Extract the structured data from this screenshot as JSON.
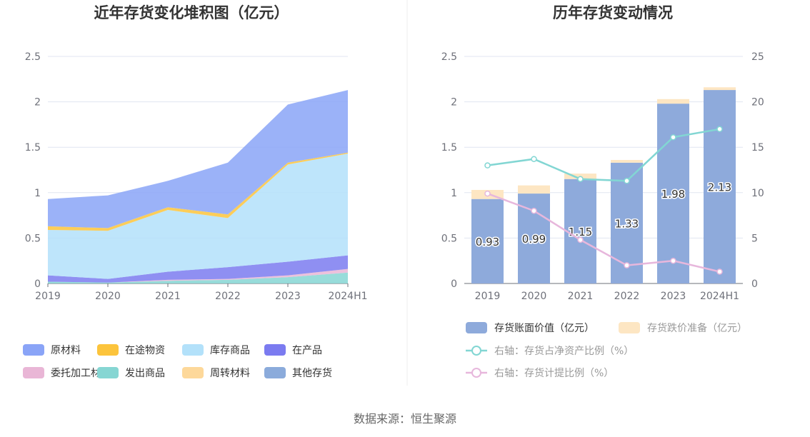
{
  "left_chart": {
    "title": "近年存货变化堆积图（亿元）"
  },
  "right_chart": {
    "title": "历年存货变动情况"
  },
  "source": "数据来源：恒生聚源",
  "colors": {
    "原材料": "#8aa4f7",
    "在途物资": "#fcc43c",
    "库存商品": "#b3e1fa",
    "在产品": "#7b7bf0",
    "委托加工材料": "#e9b6d6",
    "发出商品": "#86d6d3",
    "周转材料": "#fdd89a",
    "其他存货": "#8babdb",
    "book_value": "#8eaadb",
    "impairment": "#fde6c3",
    "ratio_net_assets": "#82d6d3",
    "provision_ratio": "#e7b7dc"
  },
  "chart_data": [
    {
      "type": "area",
      "stacked": true,
      "title": "近年存货变化堆积图（亿元）",
      "categories": [
        "2019",
        "2020",
        "2021",
        "2022",
        "2023",
        "2024H1"
      ],
      "ylim": [
        0,
        2.5
      ],
      "yticks": [
        "0",
        "0.5",
        "1",
        "1.5",
        "2",
        "2.5"
      ],
      "grid": true,
      "legend_position": "bottom",
      "series": [
        {
          "name": "发出商品",
          "values": [
            0.02,
            0.01,
            0.03,
            0.04,
            0.07,
            0.12
          ]
        },
        {
          "name": "委托加工材料",
          "values": [
            0.0,
            0.0,
            0.01,
            0.01,
            0.02,
            0.04
          ]
        },
        {
          "name": "在产品",
          "values": [
            0.07,
            0.04,
            0.09,
            0.13,
            0.15,
            0.15
          ]
        },
        {
          "name": "库存商品",
          "values": [
            0.5,
            0.53,
            0.68,
            0.54,
            1.07,
            1.12
          ]
        },
        {
          "name": "周转材料",
          "values": [
            0.0,
            0.0,
            0.0,
            0.0,
            0.0,
            0.0
          ]
        },
        {
          "name": "在途物资",
          "values": [
            0.04,
            0.03,
            0.03,
            0.04,
            0.02,
            0.01
          ]
        },
        {
          "name": "其他存货",
          "values": [
            0.0,
            0.0,
            0.0,
            0.0,
            0.0,
            0.0
          ]
        },
        {
          "name": "原材料",
          "values": [
            0.3,
            0.36,
            0.29,
            0.57,
            0.64,
            0.69
          ]
        }
      ],
      "legend": [
        "原材料",
        "在途物资",
        "库存商品",
        "在产品",
        "委托加工材料",
        "发出商品",
        "周转材料",
        "其他存货"
      ]
    },
    {
      "type": "bar",
      "stacked": true,
      "title": "历年存货变动情况",
      "categories": [
        "2019",
        "2020",
        "2021",
        "2022",
        "2023",
        "2024H1"
      ],
      "ylim": [
        0,
        2.5
      ],
      "yticks": [
        "0",
        "0.5",
        "1",
        "1.5",
        "2",
        "2.5"
      ],
      "y2lim": [
        0,
        25
      ],
      "y2ticks": [
        "0",
        "5",
        "10",
        "15",
        "20",
        "25"
      ],
      "grid": true,
      "legend_position": "bottom",
      "series": [
        {
          "name": "存货账面价值（亿元）",
          "kind": "bar",
          "values": [
            0.93,
            0.99,
            1.15,
            1.33,
            1.98,
            2.13
          ],
          "labels": [
            "0.93",
            "0.99",
            "1.15",
            "1.33",
            "1.98",
            "2.13"
          ]
        },
        {
          "name": "存货跌价准备（亿元）",
          "kind": "bar",
          "values": [
            0.1,
            0.09,
            0.06,
            0.03,
            0.05,
            0.03
          ]
        },
        {
          "name": "右轴：存货占净资产比例（%）",
          "kind": "line",
          "axis": "right",
          "values": [
            13.0,
            13.7,
            11.5,
            11.3,
            16.1,
            17.0
          ]
        },
        {
          "name": "右轴：存货计提比例（%）",
          "kind": "line",
          "axis": "right",
          "values": [
            9.9,
            8.0,
            4.8,
            2.0,
            2.5,
            1.3
          ]
        }
      ]
    }
  ]
}
